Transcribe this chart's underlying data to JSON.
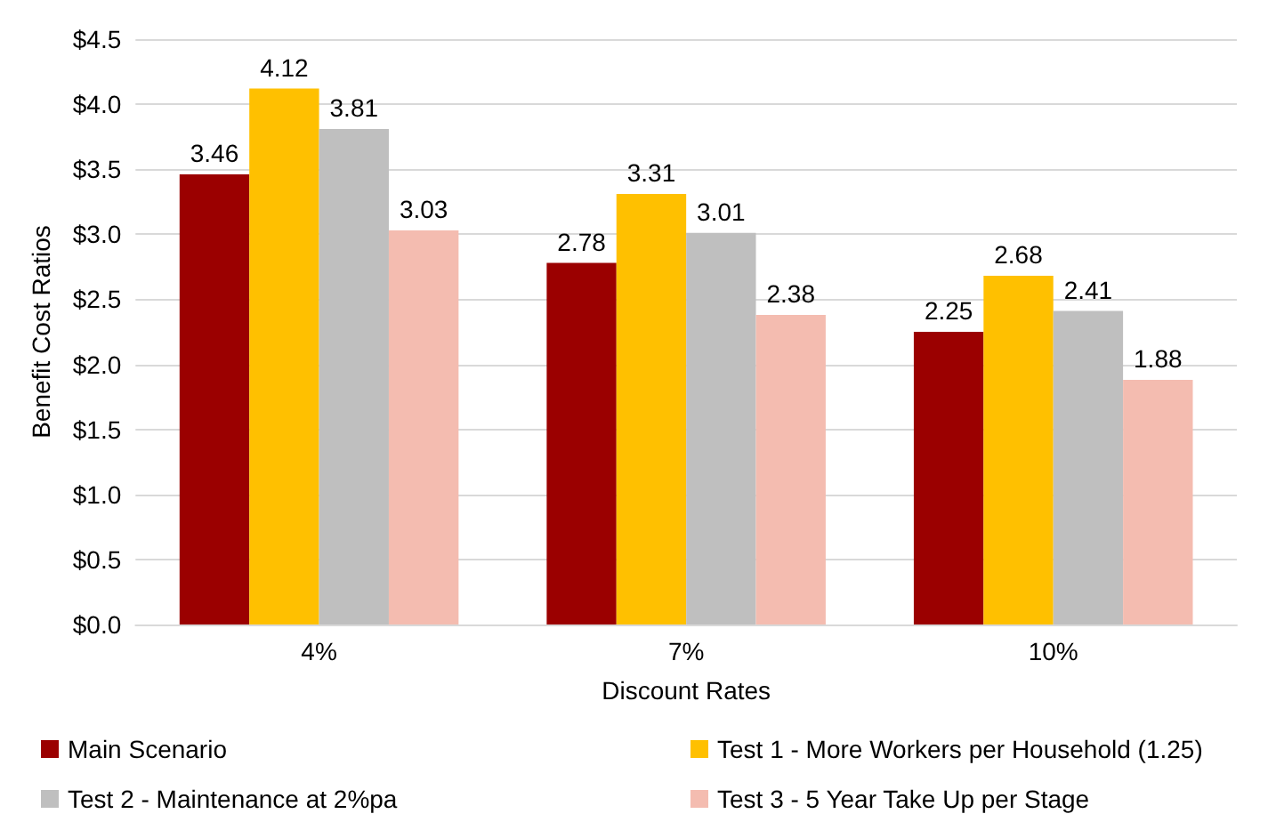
{
  "chart_data": {
    "type": "bar",
    "xlabel": "Discount Rates",
    "ylabel": "Benefit Cost Ratios",
    "categories": [
      "4%",
      "7%",
      "10%"
    ],
    "series": [
      {
        "name": "Main Scenario",
        "color": "#9b0000",
        "values": [
          3.46,
          2.78,
          2.25
        ]
      },
      {
        "name": "Test 1 - More Workers per Household (1.25)",
        "color": "#ffc000",
        "values": [
          4.12,
          3.31,
          2.68
        ]
      },
      {
        "name": "Test 2 - Maintenance at 2%pa",
        "color": "#bfbfbf",
        "values": [
          3.81,
          3.01,
          2.41
        ]
      },
      {
        "name": "Test 3 - 5 Year Take Up per Stage",
        "color": "#f4bcb0",
        "values": [
          3.03,
          2.38,
          1.88
        ]
      }
    ],
    "ylim": [
      0,
      4.5
    ],
    "yticks": [
      {
        "value": 0,
        "label": "$0.0"
      },
      {
        "value": 0.5,
        "label": "$0.5"
      },
      {
        "value": 1,
        "label": "$1.0"
      },
      {
        "value": 1.5,
        "label": "$1.5"
      },
      {
        "value": 2,
        "label": "$2.0"
      },
      {
        "value": 2.5,
        "label": "$2.5"
      },
      {
        "value": 3,
        "label": "$3.0"
      },
      {
        "value": 3.5,
        "label": "$3.5"
      },
      {
        "value": 4,
        "label": "$4.0"
      },
      {
        "value": 4.5,
        "label": "$4.5"
      }
    ],
    "grid": "y",
    "legend": "bottom",
    "data_labels": true
  }
}
